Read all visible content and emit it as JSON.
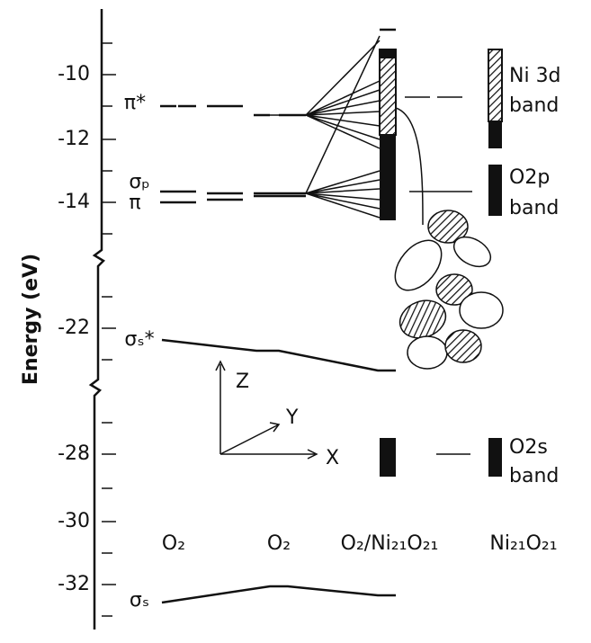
{
  "axis": {
    "label": "Energy (eV)",
    "ticks": [
      "-10",
      "-12",
      "-14",
      "-22",
      "-28",
      "-30",
      "-32"
    ]
  },
  "columns": [
    "O₂",
    "O₂",
    "O₂/Ni₂₁O₂₁",
    "Ni₂₁O₂₁"
  ],
  "levels": [
    "π*",
    "σₚ",
    "π",
    "σₛ*",
    "σₛ"
  ],
  "bands": [
    {
      "name": "Ni 3d",
      "word": "band"
    },
    {
      "name": "O2p",
      "word": "band"
    },
    {
      "name": "O2s",
      "word": "band"
    }
  ],
  "frame_axes": [
    "Z",
    "Y",
    "X"
  ]
}
